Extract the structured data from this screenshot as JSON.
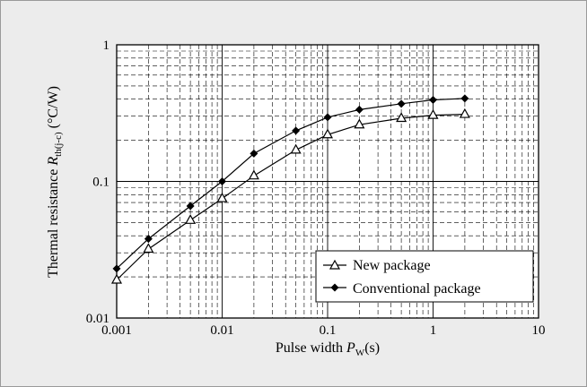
{
  "chart_data": {
    "type": "line",
    "x_scale": "log",
    "y_scale": "log",
    "xlim": [
      0.001,
      10
    ],
    "ylim": [
      0.01,
      1
    ],
    "x_ticks": [
      "0.001",
      "0.01",
      "0.1",
      "1",
      "10"
    ],
    "y_ticks": [
      "0.01",
      "0.1",
      "1"
    ],
    "xlabel": {
      "main": "Pulse width ",
      "var": "P",
      "sub": "W",
      "tail": "(s)"
    },
    "ylabel": {
      "main": "Thermal resistance ",
      "var": "R",
      "sub": "th(j-c)",
      "tail": " (°C/W)"
    },
    "grid": true,
    "legend_position": "bottom-right",
    "series": [
      {
        "name": "New package",
        "marker": "open-triangle",
        "x": [
          0.001,
          0.002,
          0.005,
          0.01,
          0.02,
          0.05,
          0.1,
          0.2,
          0.5,
          1,
          2
        ],
        "y": [
          0.019,
          0.032,
          0.052,
          0.075,
          0.11,
          0.17,
          0.22,
          0.26,
          0.29,
          0.305,
          0.31
        ]
      },
      {
        "name": "Conventional package",
        "marker": "filled-diamond",
        "x": [
          0.001,
          0.002,
          0.005,
          0.01,
          0.02,
          0.05,
          0.1,
          0.2,
          0.5,
          1,
          2
        ],
        "y": [
          0.023,
          0.038,
          0.066,
          0.1,
          0.16,
          0.235,
          0.295,
          0.335,
          0.37,
          0.395,
          0.405
        ]
      }
    ]
  }
}
